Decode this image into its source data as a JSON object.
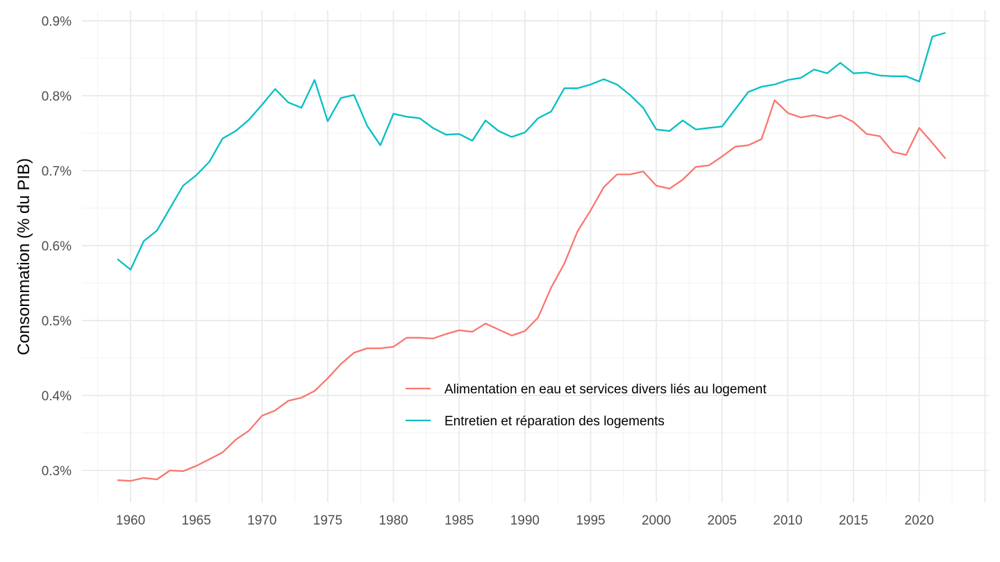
{
  "chart_data": {
    "type": "line",
    "title": "",
    "xlabel": "",
    "ylabel": "Consommation (% du PIB)",
    "xlim": [
      1956.3,
      2025.3
    ],
    "ylim": [
      0.2574,
      0.9139
    ],
    "x_ticks": [
      1960,
      1965,
      1970,
      1975,
      1980,
      1985,
      1990,
      1995,
      2000,
      2005,
      2010,
      2015,
      2020
    ],
    "x_tick_labels": [
      "1960",
      "1965",
      "1970",
      "1975",
      "1980",
      "1985",
      "1990",
      "1995",
      "2000",
      "2005",
      "2010",
      "2015",
      "2020"
    ],
    "y_ticks": [
      0.3,
      0.4,
      0.5,
      0.6,
      0.7,
      0.8,
      0.9
    ],
    "y_tick_labels": [
      "0.3%",
      "0.4%",
      "0.5%",
      "0.6%",
      "0.7%",
      "0.8%",
      "0.9%"
    ],
    "grid": true,
    "legend_position": "inside-bottom-center",
    "x": [
      1959,
      1960,
      1961,
      1962,
      1963,
      1964,
      1965,
      1966,
      1967,
      1968,
      1969,
      1970,
      1971,
      1972,
      1973,
      1974,
      1975,
      1976,
      1977,
      1978,
      1979,
      1980,
      1981,
      1982,
      1983,
      1984,
      1985,
      1986,
      1987,
      1988,
      1989,
      1990,
      1991,
      1992,
      1993,
      1994,
      1995,
      1996,
      1997,
      1998,
      1999,
      2000,
      2001,
      2002,
      2003,
      2004,
      2005,
      2006,
      2007,
      2008,
      2009,
      2010,
      2011,
      2012,
      2013,
      2014,
      2015,
      2016,
      2017,
      2018,
      2019,
      2020,
      2021,
      2022
    ],
    "series": [
      {
        "name": "Alimentation en eau et services divers liés au logement",
        "color": "#F8766D",
        "values": [
          0.287,
          0.286,
          0.29,
          0.288,
          0.3,
          0.299,
          0.306,
          0.315,
          0.324,
          0.341,
          0.353,
          0.373,
          0.38,
          0.393,
          0.397,
          0.406,
          0.423,
          0.442,
          0.457,
          0.463,
          0.463,
          0.465,
          0.477,
          0.477,
          0.476,
          0.482,
          0.487,
          0.485,
          0.496,
          0.488,
          0.48,
          0.486,
          0.504,
          0.544,
          0.576,
          0.619,
          0.647,
          0.678,
          0.695,
          0.695,
          0.699,
          0.68,
          0.676,
          0.688,
          0.705,
          0.707,
          0.719,
          0.732,
          0.734,
          0.742,
          0.794,
          0.777,
          0.771,
          0.774,
          0.77,
          0.774,
          0.765,
          0.749,
          0.746,
          0.725,
          0.721,
          0.757,
          0.737,
          0.716
        ]
      },
      {
        "name": "Entretien et réparation des logements",
        "color": "#00BFC4",
        "values": [
          0.582,
          0.568,
          0.606,
          0.62,
          0.65,
          0.68,
          0.694,
          0.712,
          0.743,
          0.753,
          0.768,
          0.788,
          0.809,
          0.791,
          0.784,
          0.821,
          0.766,
          0.797,
          0.801,
          0.76,
          0.734,
          0.776,
          0.772,
          0.77,
          0.757,
          0.748,
          0.749,
          0.74,
          0.767,
          0.753,
          0.745,
          0.751,
          0.77,
          0.779,
          0.81,
          0.81,
          0.815,
          0.822,
          0.815,
          0.801,
          0.784,
          0.755,
          0.753,
          0.767,
          0.755,
          0.757,
          0.759,
          0.782,
          0.805,
          0.812,
          0.815,
          0.821,
          0.824,
          0.835,
          0.83,
          0.844,
          0.83,
          0.831,
          0.827,
          0.826,
          0.826,
          0.819,
          0.879,
          0.884
        ]
      }
    ]
  }
}
